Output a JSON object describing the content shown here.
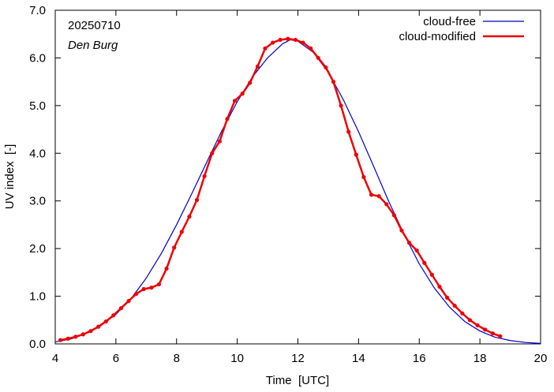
{
  "chart_data": {
    "type": "line",
    "date_label": "20250710",
    "station": "Den Burg",
    "xlabel": "Time  [UTC]",
    "ylabel": "UV index  [-]",
    "xlim": [
      4,
      20
    ],
    "ylim": [
      0.0,
      7.0
    ],
    "xticks": [
      "4",
      "6",
      "8",
      "10",
      "12",
      "14",
      "16",
      "18",
      "20"
    ],
    "yticks": [
      "0.0",
      "1.0",
      "2.0",
      "3.0",
      "4.0",
      "5.0",
      "6.0",
      "7.0"
    ],
    "grid": false,
    "legend_position": "top-right",
    "series": [
      {
        "name": "cloud-free",
        "color": "#0000cc",
        "markers": false,
        "x": [
          4.0,
          4.5,
          5.0,
          5.5,
          6.0,
          6.5,
          7.0,
          7.5,
          8.0,
          8.5,
          9.0,
          9.5,
          10.0,
          10.5,
          11.0,
          11.5,
          11.75,
          12.0,
          12.5,
          13.0,
          13.5,
          14.0,
          14.5,
          15.0,
          15.5,
          16.0,
          16.5,
          17.0,
          17.5,
          18.0,
          18.5,
          19.0,
          19.5,
          20.0
        ],
        "y": [
          0.04,
          0.1,
          0.21,
          0.38,
          0.62,
          0.95,
          1.38,
          1.9,
          2.5,
          3.15,
          3.82,
          4.48,
          5.08,
          5.6,
          6.0,
          6.3,
          6.38,
          6.35,
          6.12,
          5.7,
          5.12,
          4.45,
          3.72,
          2.98,
          2.3,
          1.68,
          1.17,
          0.77,
          0.47,
          0.27,
          0.14,
          0.07,
          0.03,
          0.01
        ]
      },
      {
        "name": "cloud-modified",
        "color": "#ee0000",
        "markers": true,
        "x": [
          4.17,
          4.42,
          4.67,
          4.92,
          5.17,
          5.42,
          5.67,
          5.92,
          6.17,
          6.42,
          6.67,
          6.92,
          7.17,
          7.42,
          7.67,
          7.92,
          8.17,
          8.42,
          8.67,
          8.92,
          9.17,
          9.42,
          9.67,
          9.92,
          10.17,
          10.42,
          10.67,
          10.92,
          11.17,
          11.42,
          11.67,
          11.92,
          12.17,
          12.42,
          12.67,
          12.92,
          13.17,
          13.42,
          13.67,
          13.92,
          14.17,
          14.42,
          14.67,
          14.92,
          15.17,
          15.42,
          15.67,
          15.92,
          16.17,
          16.42,
          16.67,
          16.92,
          17.17,
          17.42,
          17.67,
          17.92,
          18.17,
          18.42,
          18.67
        ],
        "y": [
          0.08,
          0.11,
          0.15,
          0.2,
          0.27,
          0.36,
          0.47,
          0.6,
          0.75,
          0.9,
          1.05,
          1.15,
          1.18,
          1.25,
          1.58,
          2.02,
          2.35,
          2.67,
          3.02,
          3.52,
          4.0,
          4.25,
          4.72,
          5.1,
          5.25,
          5.48,
          5.82,
          6.2,
          6.32,
          6.38,
          6.4,
          6.38,
          6.32,
          6.2,
          6.0,
          5.8,
          5.5,
          5.0,
          4.45,
          3.97,
          3.5,
          3.13,
          3.1,
          2.93,
          2.7,
          2.38,
          2.12,
          1.96,
          1.7,
          1.45,
          1.2,
          0.97,
          0.8,
          0.64,
          0.5,
          0.39,
          0.3,
          0.22,
          0.16
        ]
      }
    ]
  }
}
